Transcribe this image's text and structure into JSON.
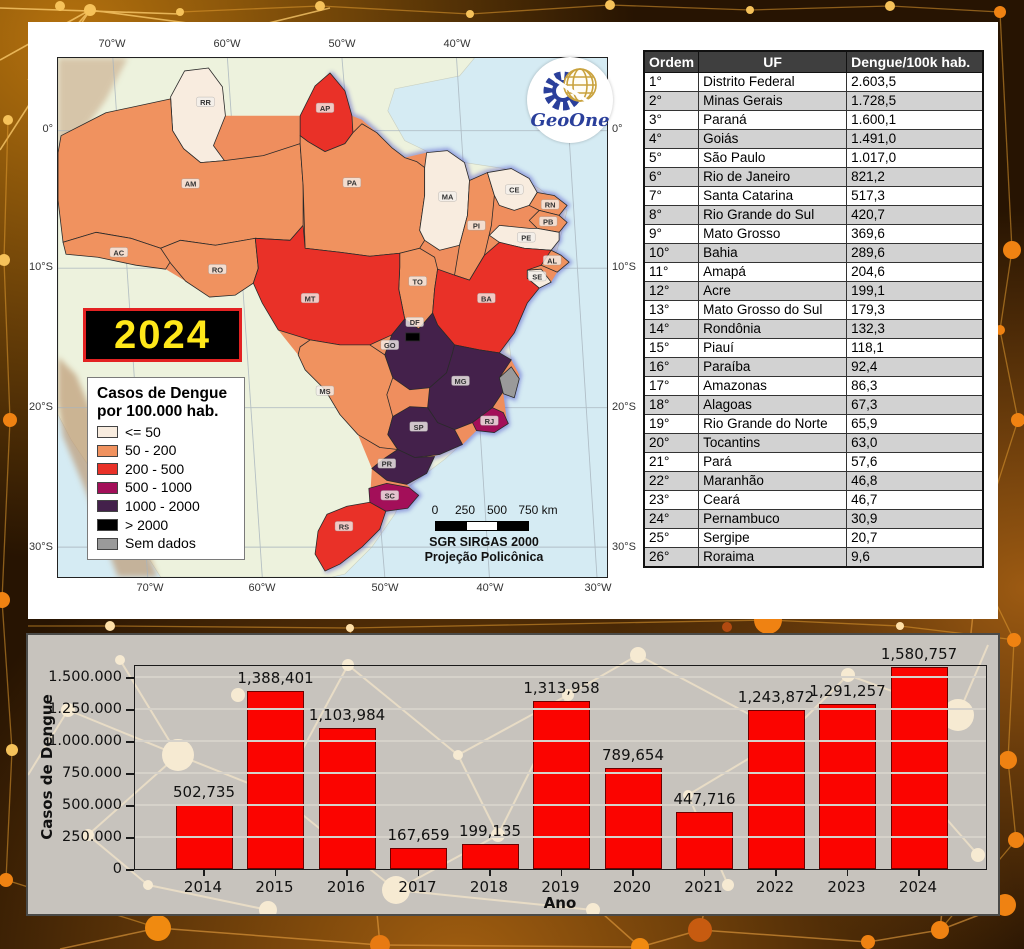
{
  "year_badge": "2024",
  "logo": {
    "text": "GeoOne"
  },
  "map": {
    "legend": {
      "title_line1": "Casos de Dengue",
      "title_line2": "por 100.000 hab.",
      "items": [
        {
          "key": "le50",
          "label": "<= 50",
          "color": "#f8ecdf"
        },
        {
          "key": "s50_200",
          "label": "50 - 200",
          "color": "#f0925f"
        },
        {
          "key": "s200_500",
          "label": "200 - 500",
          "color": "#e93128"
        },
        {
          "key": "s500_1000",
          "label": "500 - 1000",
          "color": "#a30f59"
        },
        {
          "key": "s1000_2000",
          "label": "1000 - 2000",
          "color": "#44214b"
        },
        {
          "key": "gt2000",
          "label": "> 2000",
          "color": "#000000"
        },
        {
          "key": "nodata",
          "label": "Sem dados",
          "color": "#9a9a9a"
        }
      ]
    },
    "states": [
      "RR",
      "AP",
      "AM",
      "PA",
      "MA",
      "PI",
      "CE",
      "RN",
      "PB",
      "PE",
      "AL",
      "SE",
      "AC",
      "RO",
      "TO",
      "BA",
      "MT",
      "GO",
      "DF",
      "MS",
      "MG",
      "RJ",
      "SP",
      "PR",
      "SC",
      "RS"
    ],
    "scale_bar": {
      "ticks": [
        "0",
        "250",
        "500",
        "750 km"
      ]
    },
    "projection_line1": "SGR SIRGAS 2000",
    "projection_line2": "Projeção Policônica",
    "top_lon_labels": [
      "70°W",
      "60°W",
      "50°W",
      "40°W"
    ],
    "bottom_lon_labels": [
      "70°W",
      "60°W",
      "50°W",
      "40°W",
      "30°W"
    ],
    "left_lat_labels": [
      "0°",
      "10°S",
      "20°S",
      "30°S"
    ],
    "right_lat_labels": [
      "0°",
      "10°S",
      "20°S",
      "30°S"
    ]
  },
  "table": {
    "headers": [
      "Ordem",
      "UF",
      "Dengue/100k hab."
    ],
    "rows": [
      [
        "1°",
        "Distrito Federal",
        "2.603,5"
      ],
      [
        "2°",
        "Minas Gerais",
        "1.728,5"
      ],
      [
        "3°",
        "Paraná",
        "1.600,1"
      ],
      [
        "4°",
        "Goiás",
        "1.491,0"
      ],
      [
        "5°",
        "São Paulo",
        "1.017,0"
      ],
      [
        "6°",
        "Rio de Janeiro",
        "821,2"
      ],
      [
        "7°",
        "Santa Catarina",
        "517,3"
      ],
      [
        "8°",
        "Rio Grande do Sul",
        "420,7"
      ],
      [
        "9°",
        "Mato Grosso",
        "369,6"
      ],
      [
        "10°",
        "Bahia",
        "289,6"
      ],
      [
        "11°",
        "Amapá",
        "204,6"
      ],
      [
        "12°",
        "Acre",
        "199,1"
      ],
      [
        "13°",
        "Mato Grosso do Sul",
        "179,3"
      ],
      [
        "14°",
        "Rondônia",
        "132,3"
      ],
      [
        "15°",
        "Piauí",
        "118,1"
      ],
      [
        "16°",
        "Paraíba",
        "92,4"
      ],
      [
        "17°",
        "Amazonas",
        "86,3"
      ],
      [
        "18°",
        "Alagoas",
        "67,3"
      ],
      [
        "19°",
        "Rio Grande do Norte",
        "65,9"
      ],
      [
        "20°",
        "Tocantins",
        "63,0"
      ],
      [
        "21°",
        "Pará",
        "57,6"
      ],
      [
        "22°",
        "Maranhão",
        "46,8"
      ],
      [
        "23°",
        "Ceará",
        "46,7"
      ],
      [
        "24°",
        "Pernambuco",
        "30,9"
      ],
      [
        "25°",
        "Sergipe",
        "20,7"
      ],
      [
        "26°",
        "Roraima",
        "9,6"
      ]
    ]
  },
  "chart_data": {
    "type": "bar",
    "categories": [
      "2014",
      "2015",
      "2016",
      "2017",
      "2018",
      "2019",
      "2020",
      "2021",
      "2022",
      "2023",
      "2024"
    ],
    "values": [
      502735,
      1388401,
      1103984,
      167659,
      199135,
      1313958,
      789654,
      447716,
      1243872,
      1291257,
      1580757
    ],
    "value_labels": [
      "502,735",
      "1,388,401",
      "1,103,984",
      "167,659",
      "199,135",
      "1,313,958",
      "789,654",
      "447,716",
      "1,243,872",
      "1,291,257",
      "1,580,757"
    ],
    "title": "",
    "xlabel": "Ano",
    "ylabel": "Casos de Dengue",
    "ylim": [
      0,
      1602000
    ],
    "ytick_values": [
      0,
      250000,
      500000,
      750000,
      1000000,
      1250000,
      1500000
    ],
    "ytick_labels": [
      "0",
      "250.000",
      "500.000",
      "750.000",
      "1.000.000",
      "1.250.000",
      "1.500.000"
    ],
    "bar_color": "#fb0400",
    "grid": true,
    "legend_position": "none"
  }
}
